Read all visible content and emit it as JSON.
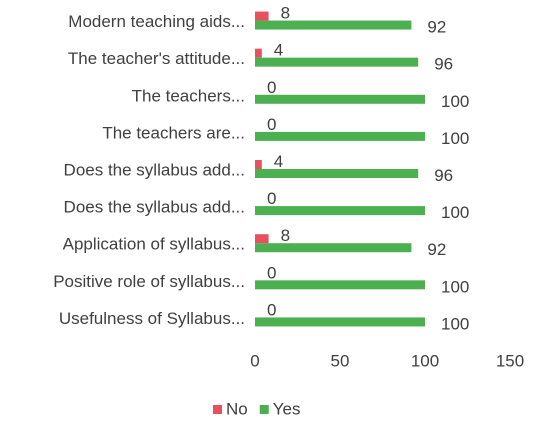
{
  "chart_data": {
    "type": "bar",
    "orientation": "horizontal",
    "categories": [
      "Modern teaching aids...",
      "The teacher's attitude...",
      "The teachers...",
      "The teachers are...",
      "Does the syllabus add...",
      "Does the syllabus add...",
      "Application of syllabus...",
      "Positive role of syllabus...",
      "Usefulness of Syllabus..."
    ],
    "series": [
      {
        "name": "No",
        "color": "#e8505f",
        "values": [
          8,
          4,
          0,
          0,
          4,
          0,
          8,
          0,
          0
        ]
      },
      {
        "name": "Yes",
        "color": "#4caf50",
        "values": [
          92,
          96,
          100,
          100,
          96,
          100,
          92,
          100,
          100
        ]
      }
    ],
    "xlim": [
      0,
      150
    ],
    "xticks": [
      0,
      50,
      100,
      150
    ],
    "grid": false,
    "legend": "bottom"
  }
}
